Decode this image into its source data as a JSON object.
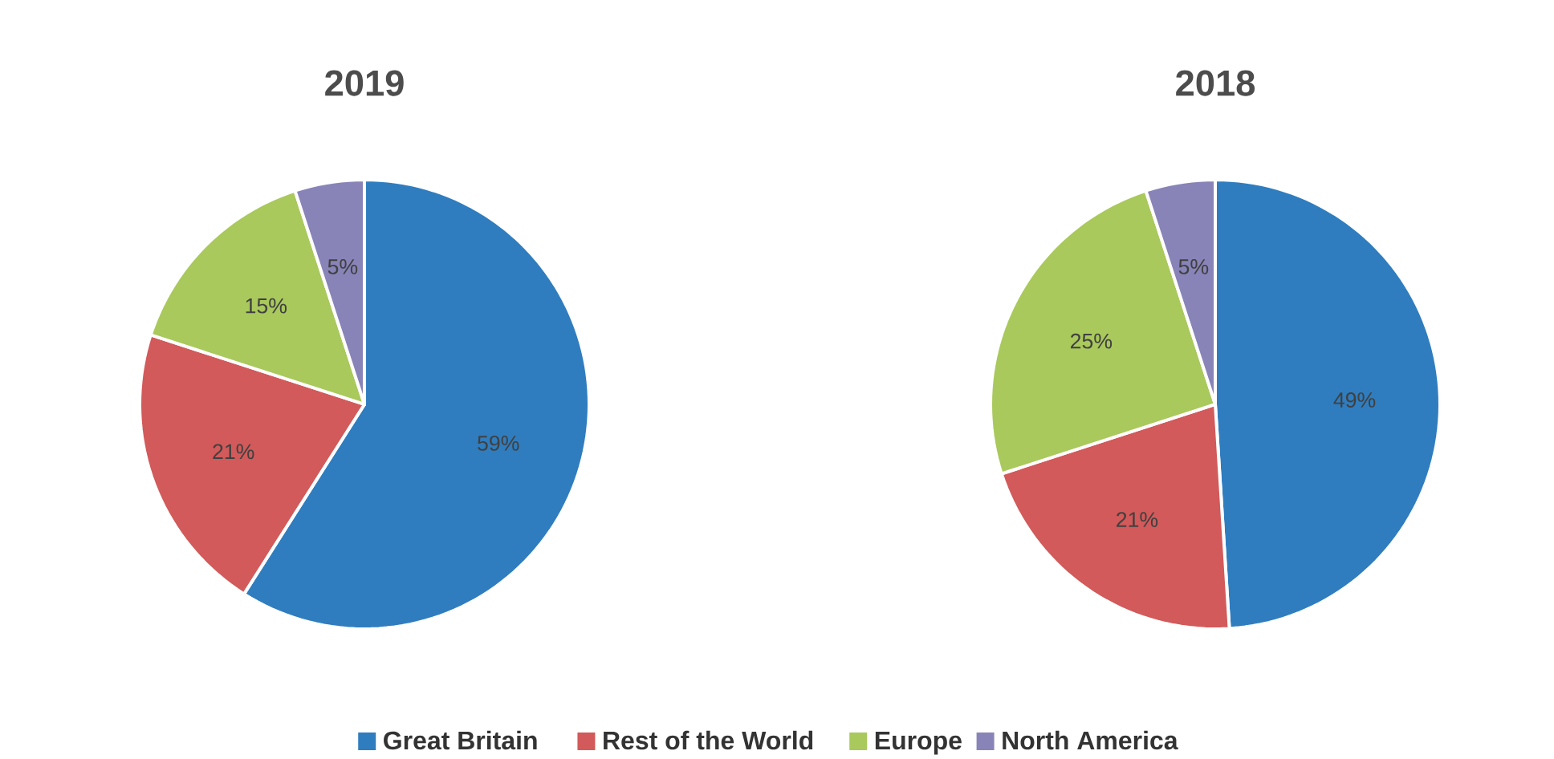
{
  "chart_data": [
    {
      "type": "pie",
      "title": "2019",
      "categories": [
        "Great Britain",
        "Rest of the World",
        "Europe",
        "North America"
      ],
      "values": [
        59,
        21,
        15,
        5
      ],
      "value_labels": [
        "59%",
        "21%",
        "15%",
        "5%"
      ],
      "colors": [
        "#2f7dbf",
        "#d25a5a",
        "#a9c95c",
        "#8884b8"
      ],
      "legend": "bottom"
    },
    {
      "type": "pie",
      "title": "2018",
      "categories": [
        null,
        null,
        null,
        null
      ],
      "values": [
        49,
        21,
        25,
        5
      ],
      "value_labels": [
        "49%",
        "21%",
        "25%",
        "5%"
      ],
      "colors": [
        "#2f7dbf",
        "#d25a5a",
        "#a9c95c",
        "#8884b8"
      ]
    }
  ]
}
